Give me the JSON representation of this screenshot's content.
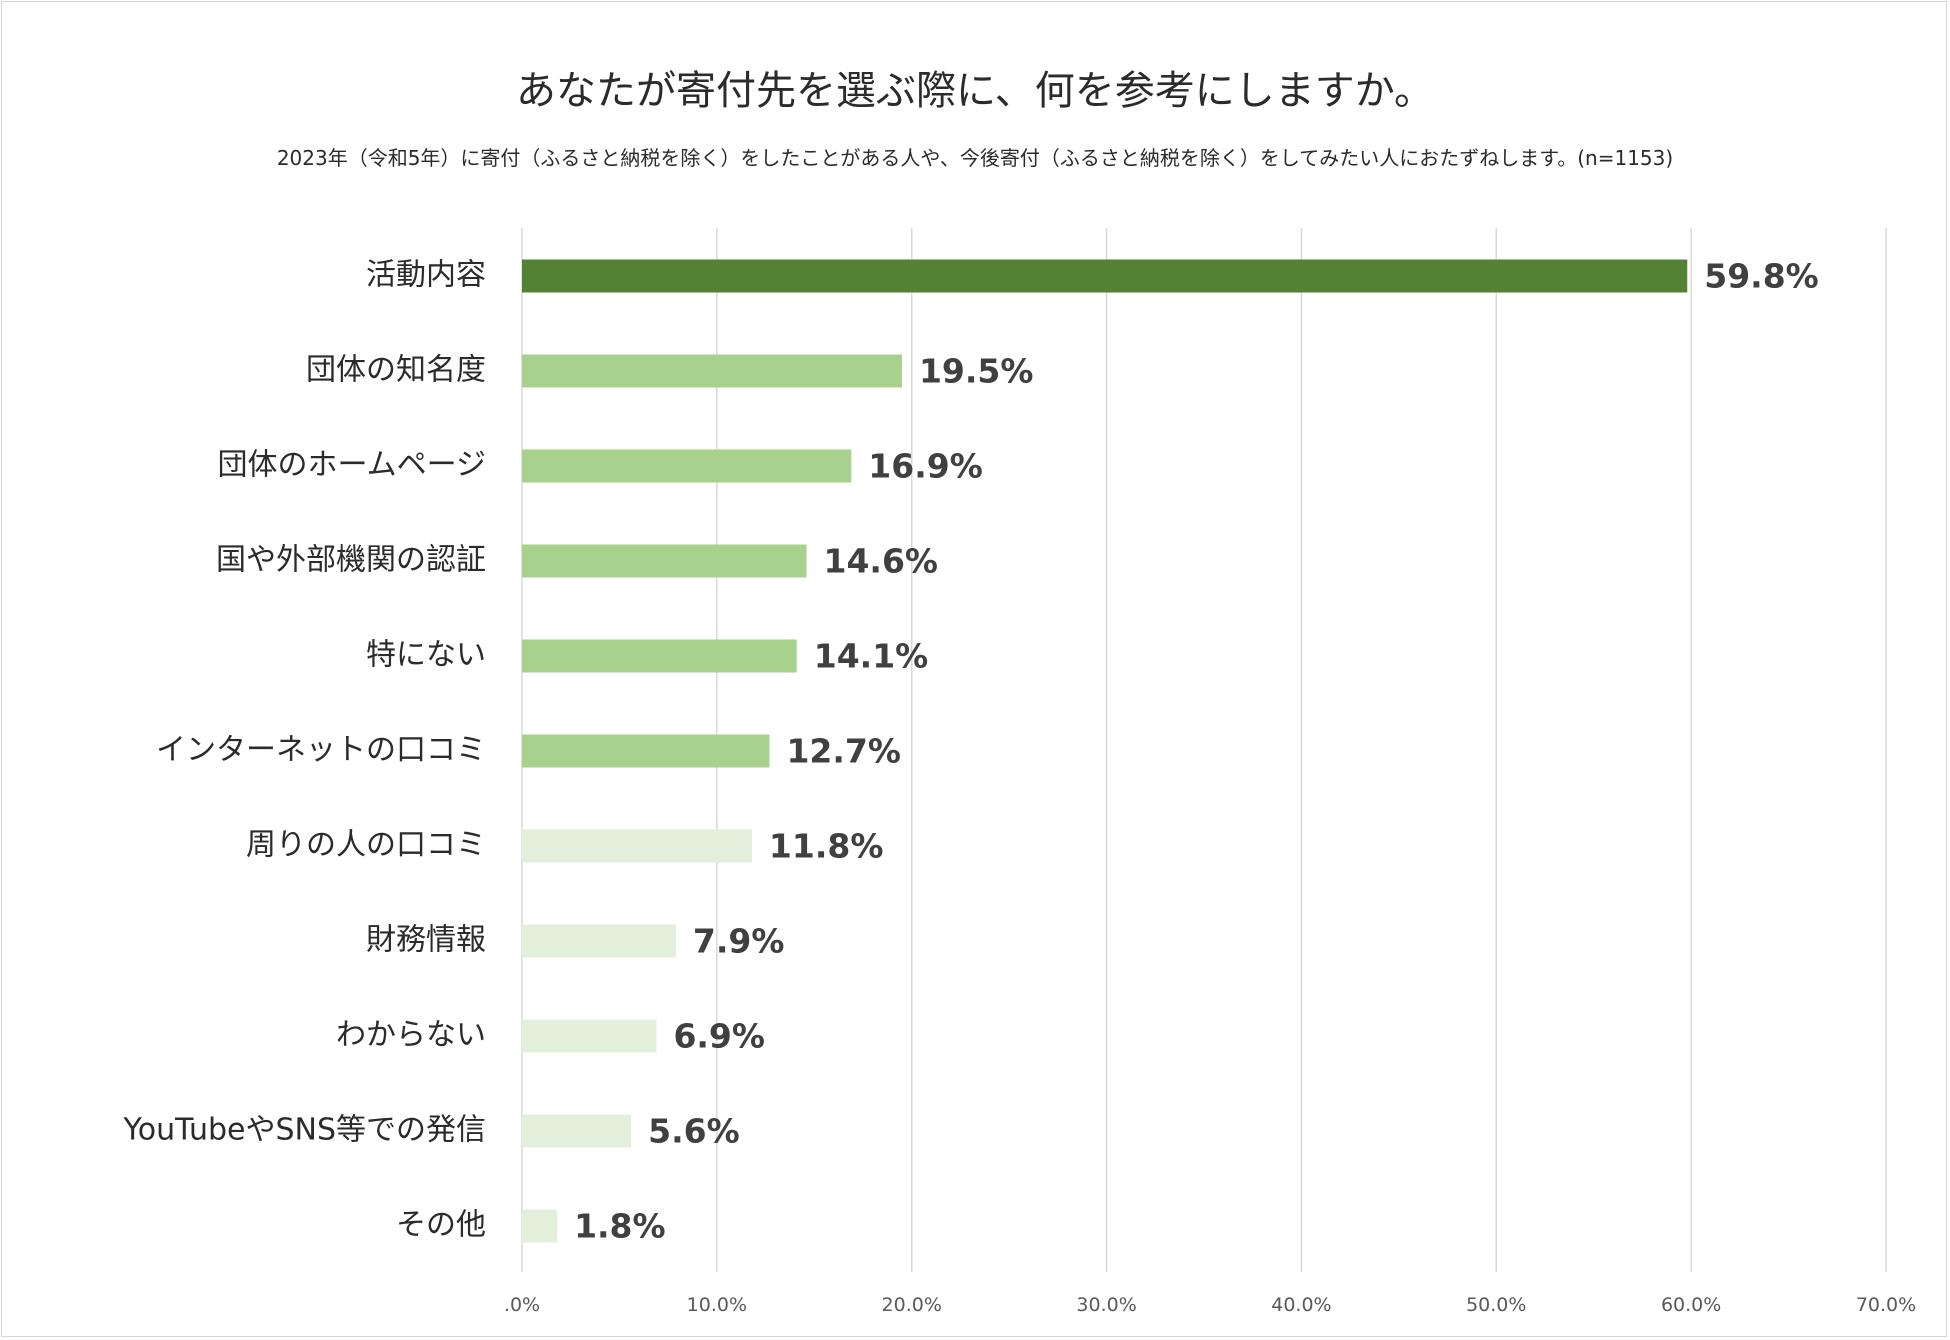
{
  "chart_data": {
    "type": "bar",
    "orientation": "horizontal",
    "title": "あなたが寄付先を選ぶ際に、何を参考にしますか。",
    "subtitle": "2023年（令和5年）に寄付（ふるさと納税を除く）をしたことがある人や、今後寄付（ふるさと納税を除く）をしてみたい人におたずねします。(n=1153)",
    "categories": [
      "活動内容",
      "団体の知名度",
      "団体のホームページ",
      "国や外部機関の認証",
      "特にない",
      "インターネットの口コミ",
      "周りの人の口コミ",
      "財務情報",
      "わからない",
      "YouTubeやSNS等での発信",
      "その他"
    ],
    "values": [
      59.8,
      19.5,
      16.9,
      14.6,
      14.1,
      12.7,
      11.8,
      7.9,
      6.9,
      5.6,
      1.8
    ],
    "value_labels": [
      "59.8%",
      "19.5%",
      "16.9%",
      "14.6%",
      "14.1%",
      "12.7%",
      "11.8%",
      "7.9%",
      "6.9%",
      "5.6%",
      "1.8%"
    ],
    "bar_colors": [
      "#548235",
      "#a9d18e",
      "#a9d18e",
      "#a9d18e",
      "#a9d18e",
      "#a9d18e",
      "#e2efda",
      "#e2efda",
      "#e2efda",
      "#e2efda",
      "#e2efda"
    ],
    "xlim": [
      0,
      70
    ],
    "x_ticks": [
      ".0%",
      "10.0%",
      "20.0%",
      "30.0%",
      "40.0%",
      "50.0%",
      "60.0%",
      "70.0%"
    ],
    "grid": true,
    "legend": "none",
    "xlabel": "",
    "ylabel": ""
  }
}
